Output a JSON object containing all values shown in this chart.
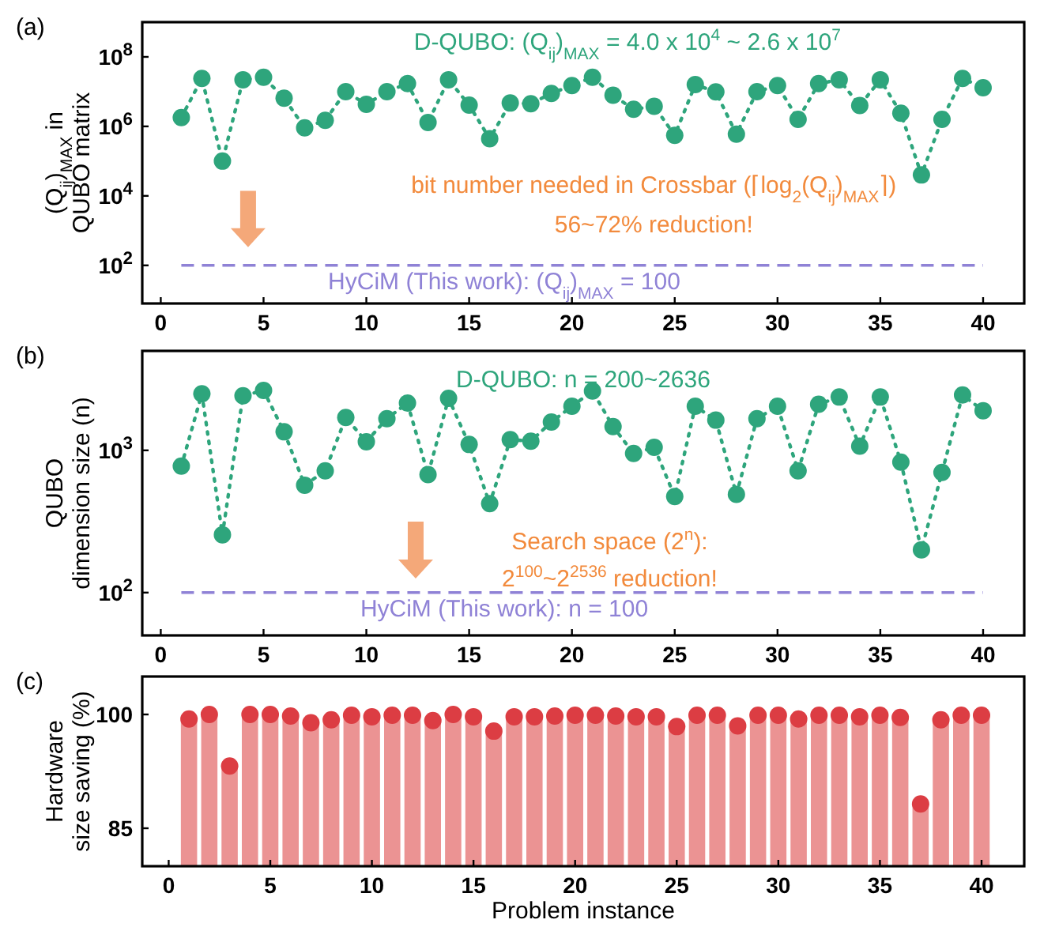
{
  "chart_data": [
    {
      "type": "line",
      "x": [
        1,
        2,
        3,
        4,
        5,
        6,
        7,
        8,
        9,
        10,
        11,
        12,
        13,
        14,
        15,
        16,
        17,
        18,
        19,
        20,
        21,
        22,
        23,
        24,
        25,
        26,
        27,
        28,
        29,
        30,
        31,
        32,
        33,
        34,
        35,
        36,
        37,
        38,
        39,
        40
      ],
      "series": [
        {
          "color": "#2ea57c",
          "values": [
            1800000.0,
            24000000.0,
            100000.0,
            22000000.0,
            26000000.0,
            6500000.0,
            910000.0,
            1500000.0,
            10000000.0,
            4300000.0,
            10000000.0,
            17000000.0,
            1300000.0,
            22000000.0,
            4100000.0,
            440000.0,
            4700000.0,
            4500000.0,
            8900000.0,
            15000000.0,
            26000000.0,
            7900000.0,
            3100000.0,
            3800000.0,
            550000.0,
            16000000.0,
            9800000.0,
            600000.0,
            10000000.0,
            15000000.0,
            1600000.0,
            17000000.0,
            22000000.0,
            4000000.0,
            22000000.0,
            2400000.0,
            40000.0,
            1600000.0,
            24000000.0,
            13000000.0
          ]
        }
      ],
      "log": "y",
      "marker": "circle",
      "line_style": "dotted",
      "xlim": [
        -0.9,
        42
      ],
      "xticks": [
        0,
        5,
        10,
        15,
        20,
        25,
        30,
        35,
        40
      ],
      "ylim": [
        8,
        1000000000.0
      ],
      "yticks": [
        {
          "value": 100,
          "label": "10$^{2}$"
        },
        {
          "value": 10000,
          "label": "10$^{4}$"
        },
        {
          "value": 1000000,
          "label": "10$^{6}$"
        },
        {
          "value": 100000000,
          "label": "10$^{8}$"
        }
      ],
      "ylabel": "(Q$_{ij}$)$_{MAX}$ in\nQUBO matrix",
      "ref_lines": [
        {
          "axis": "y",
          "value": 100,
          "label": "HyCiM (This work): (Q$_{ij}$)$_{MAX}$ = 100",
          "color": "#8f82d6",
          "line_style": "dashed"
        }
      ],
      "annotations": [
        "(a)",
        "D-QUBO: (Q$_{ij}$)$_{MAX}$ = 4.0 x 10$^{4}$ ~ 2.6 x 10$^{7}$",
        "bit number needed in Crossbar (⌈log$_{2}$(Q$_{ij}$)$_{MAX}$⌉)",
        "56~72% reduction!"
      ]
    },
    {
      "type": "line",
      "x": [
        1,
        2,
        3,
        4,
        5,
        6,
        7,
        8,
        9,
        10,
        11,
        12,
        13,
        14,
        15,
        16,
        17,
        18,
        19,
        20,
        21,
        22,
        23,
        24,
        25,
        26,
        27,
        28,
        29,
        30,
        31,
        32,
        33,
        34,
        35,
        36,
        37,
        38,
        39,
        40
      ],
      "series": [
        {
          "color": "#2ea57c",
          "values": [
            774,
            2500,
            255,
            2420,
            2636,
            1350,
            569,
            718,
            1700,
            1150,
            1670,
            2150,
            675,
            2320,
            1100,
            422,
            1190,
            1160,
            1580,
            2040,
            2610,
            1470,
            950,
            1050,
            474,
            2040,
            1630,
            490,
            1670,
            2040,
            718,
            2110,
            2370,
            1070,
            2370,
            826,
            200,
            700,
            2450,
            1900
          ]
        }
      ],
      "log": "y",
      "marker": "circle",
      "line_style": "dotted",
      "xlim": [
        -0.9,
        42
      ],
      "xticks": [
        0,
        5,
        10,
        15,
        20,
        25,
        30,
        35,
        40
      ],
      "ylim": [
        50,
        5000
      ],
      "yticks": [
        {
          "value": 100,
          "label": "10$^{2}$"
        },
        {
          "value": 1000,
          "label": "10$^{3}$"
        }
      ],
      "ylabel": "QUBO\ndimension size (n)",
      "ref_lines": [
        {
          "axis": "y",
          "value": 100,
          "label": "HyCiM (This work): n = 100",
          "color": "#8f82d6",
          "line_style": "dashed"
        }
      ],
      "annotations": [
        "(b)",
        "D-QUBO: n = 200~2636",
        "Search space (2$^{n}$):",
        "2$^{100}$~2$^{2536}$ reduction!"
      ]
    },
    {
      "type": "bar",
      "x": [
        1,
        2,
        3,
        4,
        5,
        6,
        7,
        8,
        9,
        10,
        11,
        12,
        13,
        14,
        15,
        16,
        17,
        18,
        19,
        20,
        21,
        22,
        23,
        24,
        25,
        26,
        27,
        28,
        29,
        30,
        31,
        32,
        33,
        34,
        35,
        36,
        37,
        38,
        39,
        40
      ],
      "series": [
        {
          "color": "#eb9393",
          "values": [
            99.4,
            100,
            93.2,
            100,
            100,
            99.8,
            98.9,
            99.3,
            99.9,
            99.7,
            99.9,
            99.9,
            99.2,
            100,
            99.7,
            97.8,
            99.7,
            99.7,
            99.8,
            99.9,
            99.9,
            99.8,
            99.7,
            99.7,
            98.4,
            99.9,
            99.9,
            98.5,
            99.9,
            99.9,
            99.4,
            99.9,
            99.9,
            99.7,
            99.9,
            99.6,
            88.2,
            99.3,
            99.9,
            99.9
          ]
        },
        {
          "type": "scatter",
          "color": "#dc3d43",
          "values": [
            99.4,
            100,
            93.2,
            100,
            100,
            99.8,
            98.9,
            99.3,
            99.9,
            99.7,
            99.9,
            99.9,
            99.2,
            100,
            99.7,
            97.8,
            99.7,
            99.7,
            99.8,
            99.9,
            99.9,
            99.8,
            99.7,
            99.7,
            98.4,
            99.9,
            99.9,
            98.5,
            99.9,
            99.9,
            99.4,
            99.9,
            99.9,
            99.7,
            99.9,
            99.6,
            88.2,
            99.3,
            99.9,
            99.9
          ]
        }
      ],
      "marker": "circle",
      "xlim": [
        -1.3,
        42.1
      ],
      "xticks": [
        0,
        5,
        10,
        15,
        20,
        25,
        30,
        35,
        40
      ],
      "ylim": [
        80,
        105
      ],
      "yticks": [
        85,
        100
      ],
      "xlabel": "Problem instance",
      "ylabel": "Hardware\nsize saving (%)",
      "annotations": [
        "(c)"
      ]
    }
  ]
}
